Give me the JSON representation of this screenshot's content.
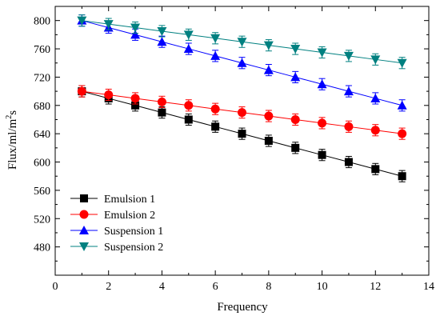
{
  "chart_data": {
    "type": "line",
    "xlabel": "Frequency",
    "ylabel_main": "Flux/ml/m",
    "ylabel_sup": "2",
    "ylabel_tail": "s",
    "xlim": [
      0,
      14
    ],
    "ylim": [
      440,
      820
    ],
    "xticks": [
      0,
      2,
      4,
      6,
      8,
      10,
      12,
      14
    ],
    "yticks": [
      480,
      520,
      560,
      600,
      640,
      680,
      720,
      760,
      800
    ],
    "grid": false,
    "legend_position": "bottom-left",
    "error_bars": true,
    "x": [
      1,
      2,
      3,
      4,
      5,
      6,
      7,
      8,
      9,
      10,
      11,
      12,
      13
    ],
    "series": [
      {
        "name": "Emulsion 1",
        "color": "#000000",
        "marker": "square",
        "values": [
          700,
          690,
          680,
          670,
          660,
          650,
          640,
          630,
          620,
          610,
          600,
          590,
          580
        ],
        "error": [
          8,
          8,
          8,
          8,
          8,
          8,
          8,
          8,
          8,
          8,
          8,
          8,
          8
        ]
      },
      {
        "name": "Emulsion 2",
        "color": "#ff0000",
        "marker": "circle",
        "values": [
          700,
          695,
          690,
          685,
          680,
          675,
          670,
          665,
          660,
          655,
          650,
          645,
          640
        ],
        "error": [
          8,
          8,
          8,
          8,
          8,
          8,
          8,
          8,
          8,
          8,
          8,
          8,
          8
        ]
      },
      {
        "name": "Suspension 1",
        "color": "#0000ff",
        "marker": "triangle-up",
        "values": [
          800,
          790,
          780,
          770,
          760,
          750,
          740,
          730,
          720,
          710,
          700,
          690,
          680
        ],
        "error": [
          8,
          8,
          8,
          8,
          8,
          8,
          8,
          8,
          8,
          8,
          8,
          8,
          8
        ]
      },
      {
        "name": "Suspension 2",
        "color": "#008080",
        "marker": "triangle-down",
        "values": [
          800,
          795,
          790,
          785,
          780,
          775,
          770,
          765,
          760,
          755,
          750,
          745,
          740
        ],
        "error": [
          8,
          8,
          8,
          8,
          8,
          8,
          8,
          8,
          8,
          8,
          8,
          8,
          8
        ]
      }
    ]
  }
}
